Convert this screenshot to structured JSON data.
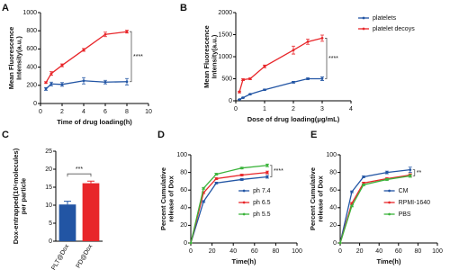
{
  "chart_data": [
    {
      "type": "line",
      "panel": "A",
      "xlabel": "Time of drug loading(h)",
      "ylabel": [
        "Mean Fluorescence",
        "Intensity(a.u.)"
      ],
      "x": [
        0.5,
        1,
        2,
        4,
        6,
        8
      ],
      "xlim": [
        0,
        10
      ],
      "xticks": [
        0,
        2,
        4,
        6,
        8,
        10
      ],
      "ylim": [
        0,
        1000
      ],
      "yticks": [
        0,
        200,
        400,
        600,
        800,
        1000
      ],
      "series": [
        {
          "name": "platelets",
          "color": "#2255a4",
          "values": [
            160,
            215,
            210,
            250,
            235,
            240
          ],
          "errors": [
            15,
            20,
            20,
            35,
            20,
            35
          ]
        },
        {
          "name": "platelet decoys",
          "color": "#e8262a",
          "values": [
            230,
            330,
            420,
            590,
            760,
            790
          ],
          "errors": [
            10,
            20,
            15,
            15,
            25,
            15
          ]
        }
      ],
      "annotation": "****"
    },
    {
      "type": "line",
      "panel": "B",
      "xlabel": "Dose of drug loading(μg/mL)",
      "ylabel": [
        "Mean Fluorescence",
        "Intensity(a.u.)"
      ],
      "x": [
        0.125,
        0.25,
        0.5,
        1,
        2,
        2.5,
        3
      ],
      "xlim": [
        0,
        4
      ],
      "xticks": [
        0,
        1,
        2,
        3,
        4
      ],
      "ylim": [
        0,
        2000
      ],
      "yticks": [
        0,
        500,
        1000,
        1500,
        2000
      ],
      "series": [
        {
          "name": "platelets",
          "color": "#2255a4",
          "values": [
            30,
            70,
            150,
            250,
            420,
            500,
            500
          ],
          "errors": [
            5,
            10,
            10,
            15,
            20,
            20,
            40
          ]
        },
        {
          "name": "platelet decoys",
          "color": "#e8262a",
          "values": [
            200,
            480,
            500,
            780,
            1150,
            1340,
            1420
          ],
          "errors": [
            20,
            20,
            20,
            30,
            90,
            60,
            70
          ]
        }
      ],
      "legend": "right",
      "annotation": "****"
    },
    {
      "type": "bar",
      "panel": "C",
      "ylabel": [
        "Dox-entrapped(10⁵molecules)",
        "per particle"
      ],
      "categories": [
        "PLT@Dox",
        "PD@Dox"
      ],
      "values": [
        10.2,
        16.1
      ],
      "errors": [
        0.9,
        0.6
      ],
      "colors": [
        "#2255a4",
        "#e8262a"
      ],
      "ylim": [
        0,
        25
      ],
      "yticks": [
        0,
        5,
        10,
        15,
        20,
        25
      ],
      "annotation": "***"
    },
    {
      "type": "line",
      "panel": "D",
      "xlabel": "Time(h)",
      "ylabel": [
        "Percent Cumulative",
        "release of Dox"
      ],
      "x": [
        0,
        12,
        24,
        48,
        72
      ],
      "xlim": [
        0,
        100
      ],
      "xticks": [
        0,
        20,
        40,
        60,
        80,
        100
      ],
      "ylim": [
        0,
        100
      ],
      "yticks": [
        0,
        20,
        40,
        60,
        80,
        100
      ],
      "series": [
        {
          "name": "ph 7.4",
          "color": "#2255a4",
          "values": [
            0,
            47,
            68,
            72,
            75
          ],
          "errors": [
            0,
            1,
            1,
            1,
            1.5
          ]
        },
        {
          "name": "ph 6.5",
          "color": "#e8262a",
          "values": [
            0,
            57,
            73,
            77,
            80
          ],
          "errors": [
            0,
            1,
            1,
            1,
            1.5
          ]
        },
        {
          "name": "ph 5.5",
          "color": "#3cb43c",
          "values": [
            0,
            62,
            78,
            85,
            88
          ],
          "errors": [
            0,
            1,
            1,
            1,
            1.5
          ]
        }
      ],
      "legend": "lower right",
      "annotation": "****"
    },
    {
      "type": "line",
      "panel": "E",
      "xlabel": "Time(h)",
      "ylabel": [
        "Percent Cumulative",
        "release of Dox"
      ],
      "x": [
        0,
        12,
        24,
        48,
        72
      ],
      "xlim": [
        0,
        100
      ],
      "xticks": [
        0,
        20,
        40,
        60,
        80,
        100
      ],
      "ylim": [
        0,
        100
      ],
      "yticks": [
        0,
        20,
        40,
        60,
        80,
        100
      ],
      "series": [
        {
          "name": "CM",
          "color": "#2255a4",
          "values": [
            0,
            58,
            75,
            80,
            83
          ],
          "errors": [
            0,
            1,
            1,
            1.5,
            3
          ]
        },
        {
          "name": "RPMI-1640",
          "color": "#e8262a",
          "values": [
            0,
            45,
            68,
            73,
            77
          ],
          "errors": [
            0,
            1,
            1,
            1,
            1.5
          ]
        },
        {
          "name": "PBS",
          "color": "#3cb43c",
          "values": [
            0,
            42,
            66,
            72,
            76
          ],
          "errors": [
            0,
            1,
            1,
            1,
            1.5
          ]
        }
      ],
      "legend": "lower right",
      "annotation": "**"
    }
  ]
}
